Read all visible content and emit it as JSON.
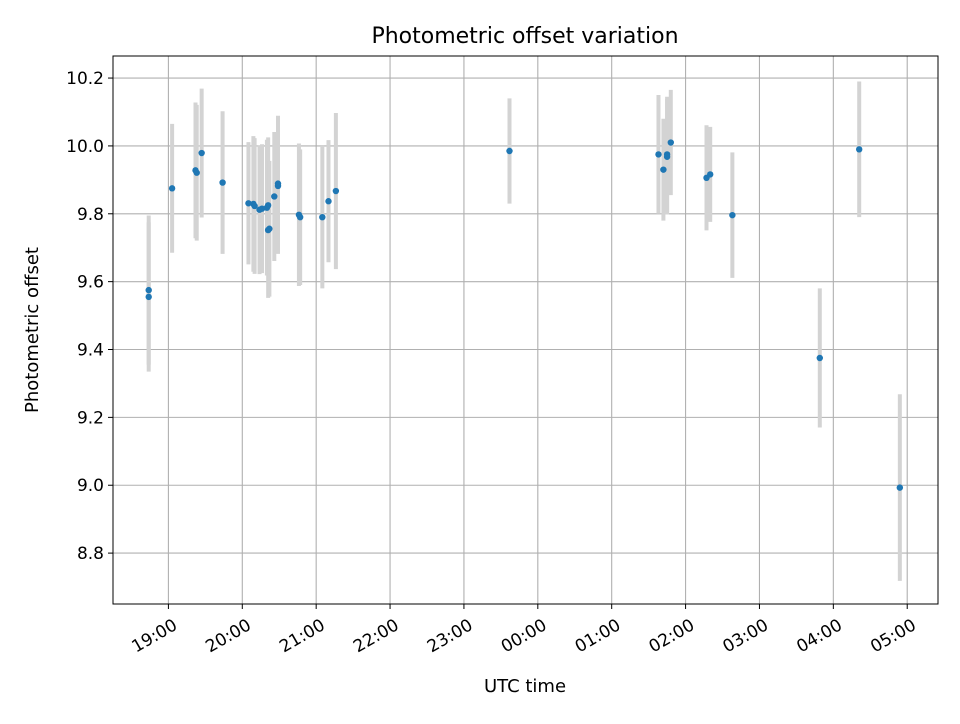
{
  "chart_data": {
    "type": "scatter",
    "title": "Photometric offset variation",
    "xlabel": "UTC time",
    "ylabel": "Photometric offset",
    "x_unit": "UTC time",
    "xlim": [
      "18:15",
      "05:25+1"
    ],
    "ylim": [
      8.65,
      10.265
    ],
    "x_ticks": [
      "19:00",
      "20:00",
      "21:00",
      "22:00",
      "23:00",
      "00:00",
      "01:00",
      "02:00",
      "03:00",
      "04:00",
      "05:00"
    ],
    "y_ticks": [
      "8.8",
      "9.0",
      "9.2",
      "9.4",
      "9.6",
      "9.8",
      "10.0",
      "10.2"
    ],
    "grid": true,
    "legend": "none",
    "series": [
      {
        "marker_color": "#1f77b4",
        "errorbar_color": "#d3d3d3",
        "points": [
          {
            "x": "18:44",
            "y": 9.575,
            "err": 0.22
          },
          {
            "x": "18:44",
            "y": 9.555,
            "err": 0.22
          },
          {
            "x": "19:03",
            "y": 9.875,
            "err": 0.19
          },
          {
            "x": "19:22",
            "y": 9.928,
            "err": 0.2
          },
          {
            "x": "19:23",
            "y": 9.921,
            "err": 0.2
          },
          {
            "x": "19:27",
            "y": 9.979,
            "err": 0.19
          },
          {
            "x": "19:44",
            "y": 9.892,
            "err": 0.21
          },
          {
            "x": "20:05",
            "y": 9.831,
            "err": 0.18
          },
          {
            "x": "20:09",
            "y": 9.829,
            "err": 0.2
          },
          {
            "x": "20:10",
            "y": 9.823,
            "err": 0.2
          },
          {
            "x": "20:14",
            "y": 9.812,
            "err": 0.19
          },
          {
            "x": "20:16",
            "y": 9.815,
            "err": 0.19
          },
          {
            "x": "20:20",
            "y": 9.818,
            "err": 0.2
          },
          {
            "x": "20:21",
            "y": 9.825,
            "err": 0.2
          },
          {
            "x": "20:21",
            "y": 9.752,
            "err": 0.2
          },
          {
            "x": "20:22",
            "y": 9.756,
            "err": 0.2
          },
          {
            "x": "20:26",
            "y": 9.851,
            "err": 0.19
          },
          {
            "x": "20:29",
            "y": 9.882,
            "err": 0.2
          },
          {
            "x": "20:29",
            "y": 9.889,
            "err": 0.2
          },
          {
            "x": "20:46",
            "y": 9.797,
            "err": 0.21
          },
          {
            "x": "20:47",
            "y": 9.79,
            "err": 0.2
          },
          {
            "x": "21:05",
            "y": 9.79,
            "err": 0.21
          },
          {
            "x": "21:10",
            "y": 9.837,
            "err": 0.18
          },
          {
            "x": "21:16",
            "y": 9.867,
            "err": 0.23
          },
          {
            "x": "23:37",
            "y": 9.985,
            "err": 0.155
          },
          {
            "x": "01:38",
            "y": 9.975,
            "err": 0.175
          },
          {
            "x": "01:42",
            "y": 9.93,
            "err": 0.15
          },
          {
            "x": "01:45",
            "y": 9.975,
            "err": 0.17
          },
          {
            "x": "01:45",
            "y": 9.968,
            "err": 0.17
          },
          {
            "x": "01:48",
            "y": 10.01,
            "err": 0.155
          },
          {
            "x": "02:17",
            "y": 9.906,
            "err": 0.155
          },
          {
            "x": "02:20",
            "y": 9.916,
            "err": 0.14
          },
          {
            "x": "02:38",
            "y": 9.796,
            "err": 0.185
          },
          {
            "x": "03:49",
            "y": 9.375,
            "err": 0.205
          },
          {
            "x": "04:21",
            "y": 9.99,
            "err": 0.2
          },
          {
            "x": "04:54",
            "y": 8.993,
            "err": 0.275
          }
        ]
      }
    ]
  }
}
